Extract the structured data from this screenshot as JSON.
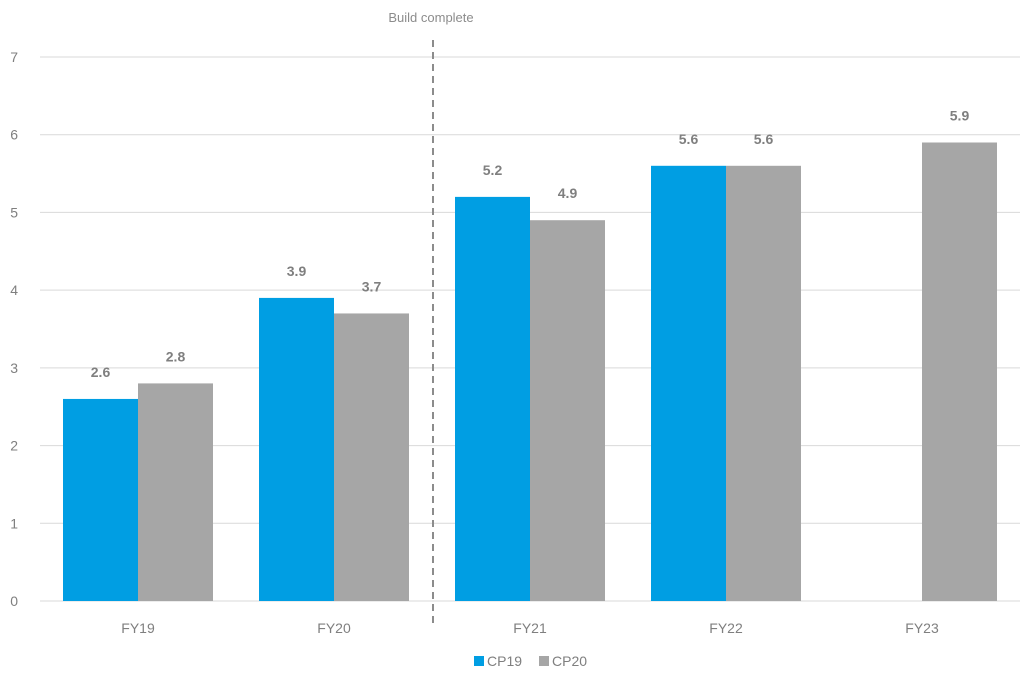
{
  "chart_data": {
    "type": "bar",
    "categories": [
      "FY19",
      "FY20",
      "FY21",
      "FY22",
      "FY23"
    ],
    "series": [
      {
        "name": "CP19",
        "color": "#009ee3",
        "values": [
          2.6,
          3.9,
          5.2,
          5.6,
          null
        ]
      },
      {
        "name": "CP20",
        "color": "#a6a6a6",
        "values": [
          2.8,
          3.7,
          4.9,
          5.6,
          5.9
        ]
      }
    ],
    "ylim": [
      0,
      7
    ],
    "yticks": [
      0,
      1,
      2,
      3,
      4,
      5,
      6,
      7
    ],
    "grid": true,
    "legend": "bottom-center",
    "annotation": {
      "text": "Build complete",
      "between": [
        "FY20",
        "FY21"
      ],
      "style": "dashed-vertical-line"
    }
  }
}
